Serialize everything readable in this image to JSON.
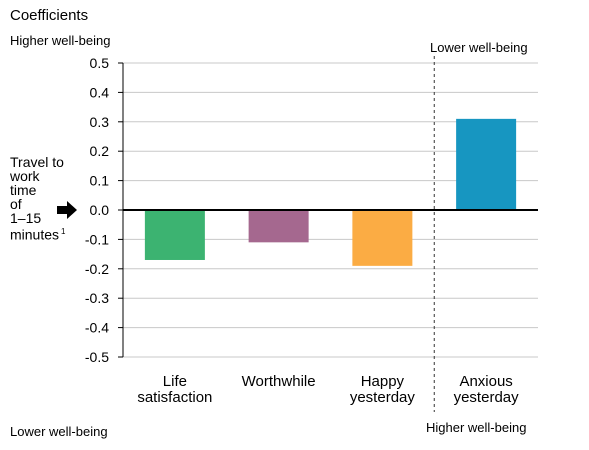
{
  "header": {
    "title": "Coefficients",
    "left_top_note": "Higher well-being",
    "right_top_note": "Lower well-being",
    "left_bottom_note": "Lower well-being",
    "right_bottom_note": "Higher well-being"
  },
  "reference_label": {
    "lines": [
      "Travel to",
      "work",
      "time",
      "of",
      "1–15",
      "minutes"
    ],
    "footnote_mark": "1",
    "arrow_icon": "right-arrow-icon"
  },
  "chart_data": {
    "type": "bar",
    "title": "Coefficients",
    "xlabel": "",
    "ylabel": "",
    "ylim": [
      -0.5,
      0.5
    ],
    "ytick_step": 0.1,
    "ytick_labels": [
      "0.5",
      "0.4",
      "0.3",
      "0.2",
      "0.1",
      "0.0",
      "-0.1",
      "-0.2",
      "-0.3",
      "-0.4",
      "-0.5"
    ],
    "grid": true,
    "categories": [
      {
        "lines": [
          "Life",
          "satisfaction"
        ],
        "value": -0.17,
        "color": "#3cb371"
      },
      {
        "lines": [
          "Worthwhile"
        ],
        "value": -0.11,
        "color": "#a5688f"
      },
      {
        "lines": [
          "Happy",
          "yesterday"
        ],
        "value": -0.19,
        "color": "#fbac44"
      },
      {
        "lines": [
          "Anxious",
          "yesterday"
        ],
        "value": 0.31,
        "color": "#1796c1"
      }
    ],
    "divider_after_category_index": 2
  }
}
